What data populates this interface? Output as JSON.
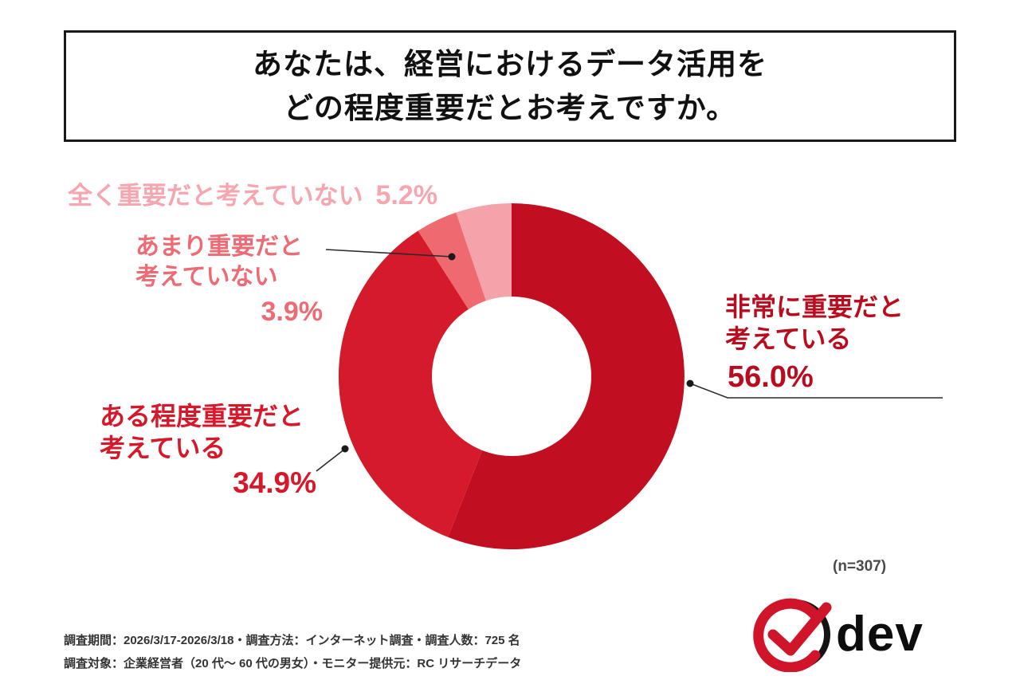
{
  "title": {
    "line1": "あなたは、経営におけるデータ活用を",
    "line2": "どの程度重要だとお考えですか。"
  },
  "chart_data": {
    "type": "pie",
    "subtype": "donut",
    "title": "あなたは、経営におけるデータ活用をどの程度重要だとお考えですか。",
    "categories": [
      "非常に重要だと考えている",
      "ある程度重要だと考えている",
      "あまり重要だと考えていない",
      "全く重要だと考えていない"
    ],
    "values": [
      56.0,
      34.9,
      3.9,
      5.2
    ],
    "unit": "%",
    "colors": [
      "#c10e20",
      "#d41a2b",
      "#ef6a70",
      "#f5a3ab"
    ],
    "start_angle_deg": 0,
    "direction": "clockwise",
    "inner_radius_ratio": 0.46,
    "label_style": "callout",
    "legend_position": "none",
    "sample_size_label": "(n=307)"
  },
  "labels": {
    "seg1": {
      "line1": "非常に重要だと",
      "line2": "考えている",
      "value": "56.0%",
      "color": "#b90d1f"
    },
    "seg2": {
      "line1": "ある程度重要だと",
      "line2": "考えている",
      "value": "34.9%",
      "color": "#d7182a"
    },
    "seg3": {
      "line1": "あまり重要だと",
      "line2": "考えていない",
      "value": "3.9%",
      "color": "#ee6a74"
    },
    "seg4": {
      "name": "全く重要だと考えていない",
      "value": "5.2%",
      "color": "#f6a6b0"
    }
  },
  "footer": {
    "line1": "調査期間：2026/3/17-2026/3/18・調査方法：インターネット調査・調査人数：725 名",
    "line2": "調査対象：企業経営者（20 代〜 60 代の男女）・モニター提供元：RC リサーチデータ"
  },
  "logo": {
    "text": "dev"
  }
}
